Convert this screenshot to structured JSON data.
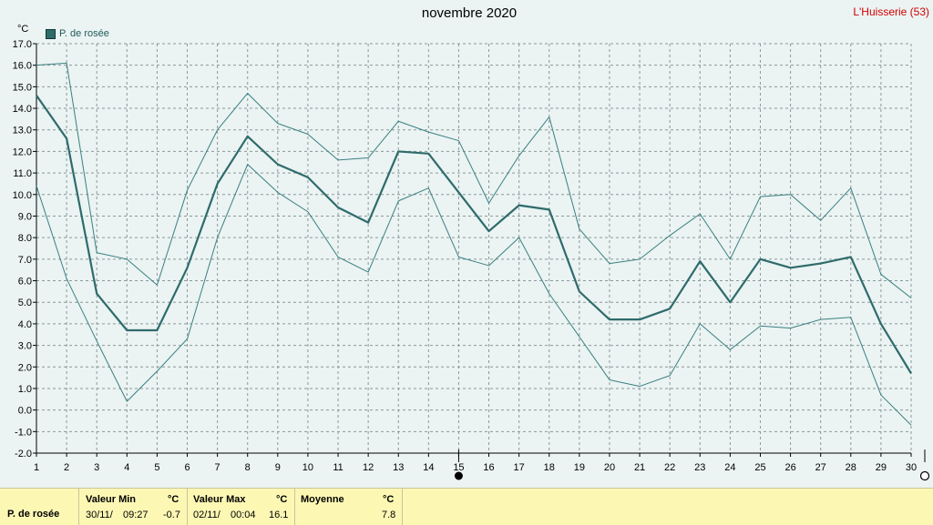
{
  "header": {
    "title": "novembre 2020",
    "station": "L'Huisserie (53)",
    "unit": "°C"
  },
  "legend": {
    "label": "P. de rosée",
    "color": "#2f6b6b"
  },
  "colors": {
    "background": "#ebf3f3",
    "plot_background": "#ebf3f3",
    "grid": "#8a9a9a",
    "series_main": "#2f6b6b",
    "series_band": "#3a8080",
    "title_station": "#d00000",
    "summary_background": "#fcf8b4"
  },
  "chart_data": {
    "type": "line",
    "title": "novembre 2020",
    "ylabel": "°C",
    "xlabel": "",
    "ylim": [
      -2.0,
      17.0
    ],
    "xlim": [
      1,
      30
    ],
    "grid": true,
    "legend_position": "top-left",
    "x": [
      1,
      2,
      3,
      4,
      5,
      6,
      7,
      8,
      9,
      10,
      11,
      12,
      13,
      14,
      15,
      16,
      17,
      18,
      19,
      20,
      21,
      22,
      23,
      24,
      25,
      26,
      27,
      28,
      29,
      30
    ],
    "y_ticks": [
      "17.0",
      "16.0",
      "15.0",
      "14.0",
      "13.0",
      "12.0",
      "11.0",
      "10.0",
      "9.0",
      "8.0",
      "7.0",
      "6.0",
      "5.0",
      "4.0",
      "3.0",
      "2.0",
      "1.0",
      "0.0",
      "-1.0",
      "-2.0"
    ],
    "x_ticks": [
      "1",
      "2",
      "3",
      "4",
      "5",
      "6",
      "7",
      "8",
      "9",
      "10",
      "11",
      "12",
      "13",
      "14",
      "15",
      "16",
      "17",
      "18",
      "19",
      "20",
      "21",
      "22",
      "23",
      "24",
      "25",
      "26",
      "27",
      "28",
      "29",
      "30"
    ],
    "series": [
      {
        "name": "P. de rosée",
        "role": "mean",
        "values": [
          14.6,
          12.6,
          5.4,
          3.7,
          3.7,
          6.6,
          10.5,
          12.7,
          11.4,
          10.8,
          9.4,
          8.7,
          12.0,
          11.9,
          10.1,
          8.3,
          9.5,
          9.3,
          5.5,
          4.2,
          4.2,
          4.7,
          6.9,
          5.0,
          7.0,
          6.6,
          6.8,
          7.1,
          4.0,
          1.7
        ]
      },
      {
        "role": "max",
        "values": [
          16.0,
          16.1,
          7.3,
          7.0,
          5.8,
          10.2,
          13.0,
          14.7,
          13.3,
          12.8,
          11.6,
          11.7,
          13.4,
          12.9,
          12.5,
          9.6,
          11.8,
          13.6,
          8.4,
          6.8,
          7.0,
          8.1,
          9.1,
          7.0,
          9.9,
          10.0,
          8.8,
          10.3,
          6.3,
          5.2
        ]
      },
      {
        "role": "min",
        "values": [
          10.4,
          6.1,
          3.2,
          0.4,
          1.8,
          3.3,
          8.0,
          11.4,
          10.1,
          9.2,
          7.1,
          6.4,
          9.7,
          10.3,
          7.1,
          6.7,
          8.0,
          5.4,
          3.4,
          1.4,
          1.1,
          1.6,
          4.0,
          2.8,
          3.9,
          3.8,
          4.2,
          4.3,
          0.7,
          -0.7
        ]
      }
    ]
  },
  "summary": {
    "row_label": "P. de rosée",
    "min": {
      "header": "Valeur Min",
      "unit": "°C",
      "date": "30/11/",
      "time": "09:27",
      "value": "-0.7"
    },
    "max": {
      "header": "Valeur Max",
      "unit": "°C",
      "date": "02/11/",
      "time": "00:04",
      "value": "16.1"
    },
    "mean": {
      "header": "Moyenne",
      "unit": "°C",
      "value": "7.8"
    }
  }
}
